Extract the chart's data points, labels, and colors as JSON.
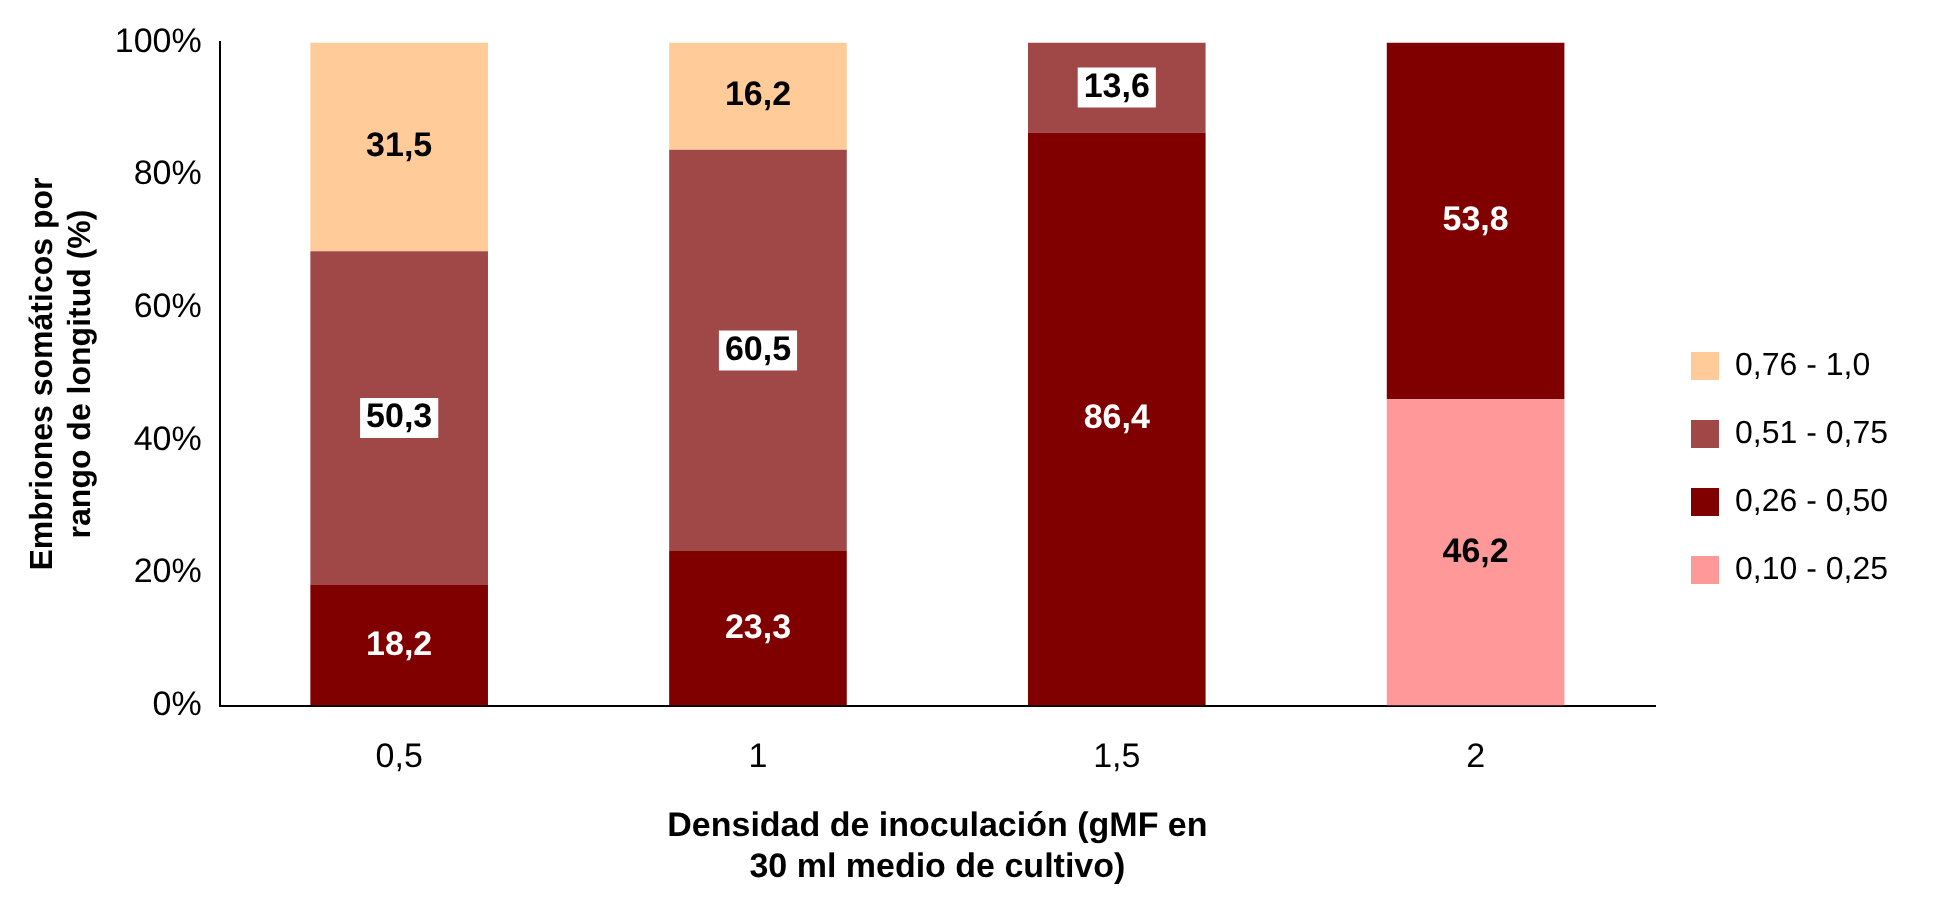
{
  "chart_data": {
    "type": "bar",
    "stacked": true,
    "xlabel": "Densidad de inoculación (gMF en\n30 ml medio de cultivo)",
    "ylabel": "Embriones somáticos por\nrango de longitud (%)",
    "categories": [
      "0,5",
      "1",
      "1,5",
      "2"
    ],
    "series": [
      {
        "name": "0,10 - 0,25",
        "color": "#ff9999",
        "values": [
          0,
          0,
          0,
          46.2
        ],
        "value_labels": [
          null,
          null,
          null,
          "46,2"
        ]
      },
      {
        "name": "0,26 - 0,50",
        "color": "#800000",
        "values": [
          18.2,
          23.3,
          86.4,
          53.8
        ],
        "value_labels": [
          "18,2",
          "23,3",
          "86,4",
          "53,8"
        ]
      },
      {
        "name": "0,51 - 0,75",
        "color": "#a04848",
        "values": [
          50.3,
          60.5,
          13.6,
          0
        ],
        "value_labels": [
          "50,3",
          "60,5",
          "13,6",
          null
        ]
      },
      {
        "name": "0,76 - 1,0",
        "color": "#ffcc99",
        "values": [
          31.5,
          16.2,
          0,
          0
        ],
        "value_labels": [
          "31,5",
          "16,2",
          null,
          null
        ]
      }
    ],
    "ylim": [
      0,
      100
    ],
    "yticks": [
      {
        "value": 0,
        "label": "0%"
      },
      {
        "value": 20,
        "label": "20%"
      },
      {
        "value": 40,
        "label": "40%"
      },
      {
        "value": 60,
        "label": "60%"
      },
      {
        "value": 80,
        "label": "80%"
      },
      {
        "value": 100,
        "label": "100%"
      }
    ],
    "grid": false,
    "legend": "right"
  }
}
